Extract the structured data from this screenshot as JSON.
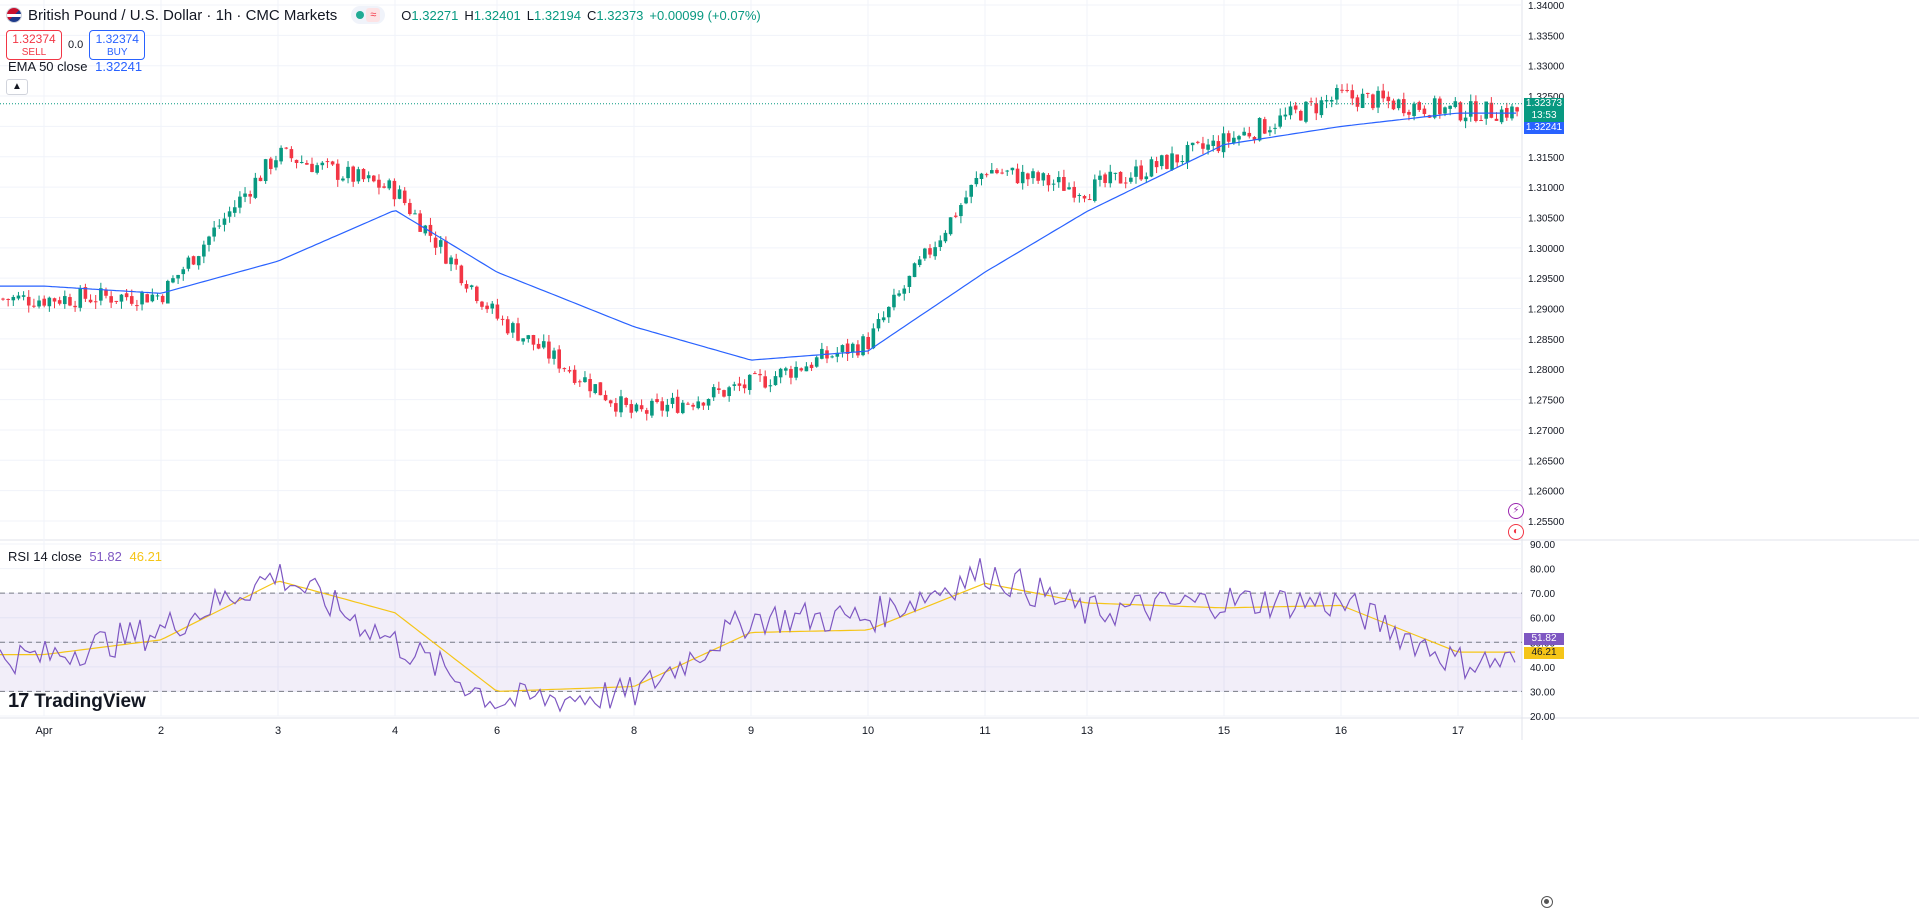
{
  "header": {
    "title": "British Pound / U.S. Dollar · 1h · CMC Markets",
    "ohlc": [
      {
        "label": "O",
        "value": "1.32271"
      },
      {
        "label": "H",
        "value": "1.32401"
      },
      {
        "label": "L",
        "value": "1.32194"
      },
      {
        "label": "C",
        "value": "1.32373"
      },
      {
        "label": "",
        "value": "+0.00099 (+0.07%)"
      }
    ]
  },
  "trade": {
    "sell_price": "1.32374",
    "sell_label": "SELL",
    "spread": "0.0",
    "buy_price": "1.32374",
    "buy_label": "BUY"
  },
  "ema_legend": {
    "name": "EMA 50 close",
    "value": "1.32241"
  },
  "rsi_legend": {
    "name": "RSI 14 close",
    "value": "51.82",
    "ma_value": "46.21"
  },
  "price_tags": {
    "last": "1.32373",
    "countdown": "13:53",
    "ema": "1.32241",
    "rsi": "51.82",
    "rsi_ma": "46.21"
  },
  "brand": "TradingView",
  "colors": {
    "up": "#089981",
    "down": "#f23645",
    "ema": "#2962ff",
    "rsi": "#7e57c2",
    "rsi_ma": "#f5c518",
    "rsi_band": "#7e57c2"
  },
  "chart_data": [
    {
      "type": "candlestick",
      "title": "British Pound / U.S. Dollar · 1h · CMC Markets",
      "ylim": [
        1.2515,
        1.3395
      ],
      "y_ticks": [
        "1.34000",
        "1.33500",
        "1.33000",
        "1.32500",
        "1.32000",
        "1.31500",
        "1.31000",
        "1.30500",
        "1.30000",
        "1.29500",
        "1.29000",
        "1.28500",
        "1.28000",
        "1.27500",
        "1.27000",
        "1.26500",
        "1.26000",
        "1.25500"
      ],
      "x_ticks": [
        "Apr",
        "2",
        "3",
        "4",
        "6",
        "8",
        "9",
        "10",
        "11",
        "13",
        "15",
        "16",
        "17"
      ],
      "price_path": [
        {
          "day": "Apr",
          "price": 1.2916
        },
        {
          "day": "2",
          "price": 1.2922
        },
        {
          "day": "3",
          "price": 1.3155
        },
        {
          "day": "4",
          "price": 1.3095
        },
        {
          "day": "6",
          "price": 1.2885
        },
        {
          "day": "8",
          "price": 1.2725
        },
        {
          "day": "9",
          "price": 1.2775
        },
        {
          "day": "10",
          "price": 1.2845
        },
        {
          "day": "11",
          "price": 1.313
        },
        {
          "day": "13",
          "price": 1.3095
        },
        {
          "day": "15",
          "price": 1.3175
        },
        {
          "day": "16",
          "price": 1.325
        },
        {
          "day": "17",
          "price": 1.3225
        }
      ],
      "swing_points": [
        {
          "label": "low",
          "day": "8",
          "price": 1.2713
        },
        {
          "label": "high",
          "day": "3",
          "price": 1.3205
        },
        {
          "label": "high",
          "day": "16",
          "price": 1.3293
        }
      ],
      "last_price": 1.32373,
      "ema": {
        "name": "EMA 50 close",
        "points": [
          {
            "day": "Apr",
            "value": 1.2937
          },
          {
            "day": "2",
            "value": 1.2925
          },
          {
            "day": "3",
            "value": 1.2978
          },
          {
            "day": "4",
            "value": 1.3062
          },
          {
            "day": "6",
            "value": 1.296
          },
          {
            "day": "8",
            "value": 1.287
          },
          {
            "day": "9",
            "value": 1.2815
          },
          {
            "day": "10",
            "value": 1.283
          },
          {
            "day": "11",
            "value": 1.296
          },
          {
            "day": "13",
            "value": 1.306
          },
          {
            "day": "15",
            "value": 1.317
          },
          {
            "day": "16",
            "value": 1.32
          },
          {
            "day": "17",
            "value": 1.3222
          }
        ]
      }
    },
    {
      "type": "line",
      "title": "RSI 14 close",
      "ylim": [
        20,
        90
      ],
      "y_ticks": [
        "90.00",
        "80.00",
        "70.00",
        "60.00",
        "50.00",
        "40.00",
        "30.00",
        "20.00"
      ],
      "band": [
        30,
        70
      ],
      "series": [
        {
          "name": "RSI",
          "points": [
            {
              "day": "Apr",
              "value": 44
            },
            {
              "day": "2",
              "value": 55
            },
            {
              "day": "3",
              "value": 78
            },
            {
              "day": "4",
              "value": 50
            },
            {
              "day": "6",
              "value": 26
            },
            {
              "day": "8",
              "value": 29
            },
            {
              "day": "9",
              "value": 60
            },
            {
              "day": "10",
              "value": 60
            },
            {
              "day": "11",
              "value": 79
            },
            {
              "day": "13",
              "value": 62
            },
            {
              "day": "15",
              "value": 67
            },
            {
              "day": "16",
              "value": 66
            },
            {
              "day": "17",
              "value": 42
            }
          ]
        },
        {
          "name": "RSI MA",
          "points": [
            {
              "day": "Apr",
              "value": 45
            },
            {
              "day": "2",
              "value": 51
            },
            {
              "day": "3",
              "value": 75
            },
            {
              "day": "4",
              "value": 62
            },
            {
              "day": "6",
              "value": 30
            },
            {
              "day": "8",
              "value": 32
            },
            {
              "day": "9",
              "value": 54
            },
            {
              "day": "10",
              "value": 55
            },
            {
              "day": "11",
              "value": 74
            },
            {
              "day": "13",
              "value": 66
            },
            {
              "day": "15",
              "value": 64
            },
            {
              "day": "16",
              "value": 65
            },
            {
              "day": "17",
              "value": 46
            }
          ]
        }
      ]
    }
  ]
}
